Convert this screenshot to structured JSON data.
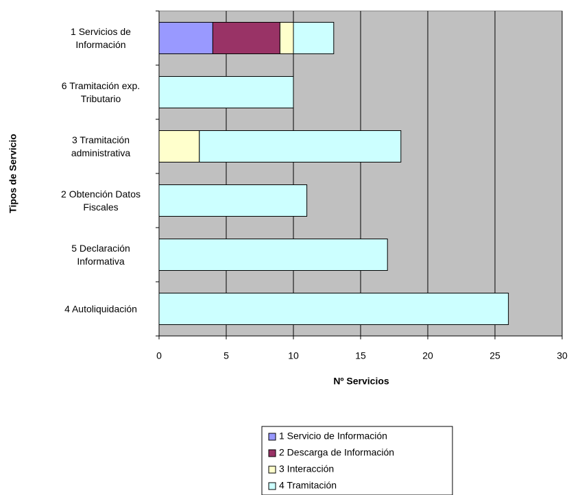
{
  "chart_data": {
    "type": "bar",
    "orientation": "horizontal",
    "stacked": true,
    "categories": [
      "1 Servicios de Información",
      "6 Tramitación exp. Tributario",
      "3 Tramitación administrativa",
      "2 Obtención Datos Fiscales",
      "5 Declaración Informativa",
      "4 Autoliquidación"
    ],
    "series": [
      {
        "name": "1 Servicio de Información",
        "color": "#9999ff",
        "values": [
          4,
          0,
          0,
          0,
          0,
          0
        ]
      },
      {
        "name": "2 Descarga de Información",
        "color": "#993366",
        "values": [
          5,
          0,
          0,
          0,
          0,
          0
        ]
      },
      {
        "name": "3 Interacción",
        "color": "#ffffcc",
        "values": [
          1,
          0,
          3,
          0,
          0,
          0
        ]
      },
      {
        "name": "4 Tramitación",
        "color": "#ccffff",
        "values": [
          3,
          10,
          15,
          11,
          17,
          26
        ]
      }
    ],
    "xlabel": "Nº Servicios",
    "ylabel": "Tipos de Servicio",
    "xlim": [
      0,
      30
    ],
    "xticks": [
      0,
      5,
      10,
      15,
      20,
      25,
      30
    ],
    "grid": true,
    "legend": "bottom"
  }
}
